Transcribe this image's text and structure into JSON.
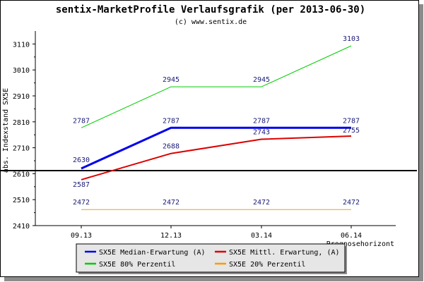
{
  "chart_data": {
    "type": "line",
    "title": "sentix-MarketProfile Verlaufsgrafik (per 2013-06-30)",
    "subtitle": "(c) www.sentix.de",
    "ylabel": "abs. Indexstand SX5E",
    "xlabel": "Prognosehorizont",
    "categories": [
      "09.13",
      "12.13",
      "03.14",
      "06.14"
    ],
    "y_ticks": [
      2410,
      2510,
      2610,
      2710,
      2810,
      2910,
      3010,
      3110
    ],
    "ylim": [
      2410,
      3160
    ],
    "reference_line": 2622,
    "series": [
      {
        "name": "SX5E Median-Erwartung (A)",
        "color": "#0000ee",
        "width": 3,
        "values": [
          2630,
          2787,
          2787,
          2787
        ],
        "labels": [
          "2630",
          "2787",
          "2787",
          "2787"
        ]
      },
      {
        "name": "SX5E Mittl. Erwartung, (A)",
        "color": "#dd0000",
        "width": 2,
        "values": [
          2587,
          2688,
          2743,
          2755
        ],
        "labels": [
          "2587",
          "2688",
          "2743",
          "2755"
        ]
      },
      {
        "name": "SX5E 80% Perzentil",
        "color": "#00cc00",
        "width": 1,
        "values": [
          2787,
          2945,
          2945,
          3103
        ],
        "labels": [
          "2787",
          "2945",
          "2945",
          "3103"
        ]
      },
      {
        "name": "SX5E 20% Perzentil",
        "color": "#ff9900",
        "width": 1,
        "values": [
          2472,
          2472,
          2472,
          2472
        ],
        "labels": [
          "2472",
          "2472",
          "2472",
          "2472"
        ]
      }
    ],
    "legend_placement": "bottom",
    "grid": false
  }
}
